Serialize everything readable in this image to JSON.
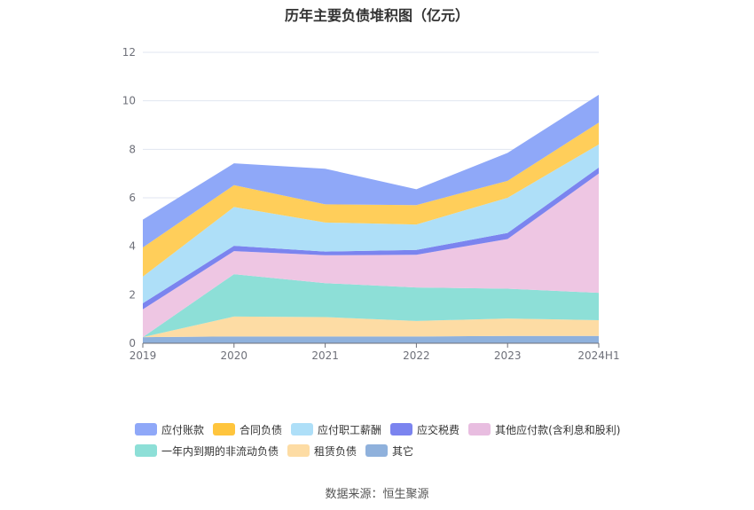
{
  "chart_data": {
    "type": "area",
    "stacked": true,
    "title": "历年主要负债堆积图（亿元）",
    "xlabel": "",
    "ylabel": "",
    "ylim": [
      0,
      12
    ],
    "yticks": [
      "0",
      "2",
      "4",
      "6",
      "8",
      "10",
      "12"
    ],
    "categories": [
      "2019",
      "2020",
      "2021",
      "2022",
      "2023",
      "2024H1"
    ],
    "grid": true,
    "legend_position": "bottom",
    "series": [
      {
        "name": "其它",
        "color": "#8fb1dc",
        "values": [
          0.25,
          0.28,
          0.28,
          0.28,
          0.3,
          0.3
        ]
      },
      {
        "name": "租赁负债",
        "color": "#fddca4",
        "values": [
          0.0,
          0.82,
          0.8,
          0.64,
          0.72,
          0.65
        ]
      },
      {
        "name": "一年内到期的非流动负债",
        "color": "#8ddfd7",
        "values": [
          0.0,
          1.75,
          1.4,
          1.38,
          1.23,
          1.13
        ]
      },
      {
        "name": "其他应付款(含利息和股利)",
        "color": "#eec6e3",
        "values": [
          1.15,
          0.95,
          1.15,
          1.35,
          2.05,
          4.92
        ]
      },
      {
        "name": "应交税费",
        "color": "#7b84ef",
        "values": [
          0.25,
          0.22,
          0.15,
          0.2,
          0.25,
          0.25
        ]
      },
      {
        "name": "应付职工薪酬",
        "color": "#aedff8",
        "values": [
          1.1,
          1.6,
          1.2,
          1.05,
          1.45,
          0.95
        ]
      },
      {
        "name": "合同负债",
        "color": "#ffce5a",
        "values": [
          1.2,
          0.9,
          0.75,
          0.8,
          0.7,
          0.9
        ]
      },
      {
        "name": "应付账款",
        "color": "#8fa8f8",
        "values": [
          1.15,
          0.9,
          1.47,
          0.65,
          1.15,
          1.15
        ]
      }
    ],
    "legend": [
      {
        "name": "应付账款",
        "color": "#8fa8f8"
      },
      {
        "name": "合同负债",
        "color": "#ffc53d"
      },
      {
        "name": "应付职工薪酬",
        "color": "#aedff8"
      },
      {
        "name": "应交税费",
        "color": "#7b84ef"
      },
      {
        "name": "其他应付款(含利息和股利)",
        "color": "#e8bde0"
      },
      {
        "name": "一年内到期的非流动负债",
        "color": "#8ddfd7"
      },
      {
        "name": "租赁负债",
        "color": "#fddca4"
      },
      {
        "name": "其它",
        "color": "#8fb1dc"
      }
    ]
  },
  "source": "数据来源：恒生聚源"
}
